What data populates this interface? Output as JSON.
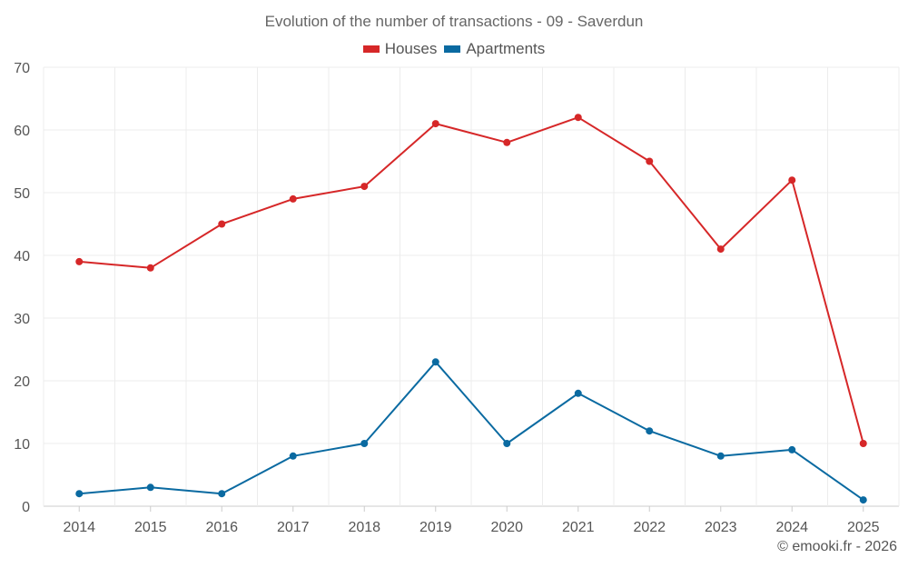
{
  "colors": {
    "houses": "#d62728",
    "apartments": "#0a6aa1",
    "grid": "#ececec"
  },
  "credit": "© emooki.fr - 2026",
  "chart_data": {
    "type": "line",
    "title": "Evolution of the number of transactions - 09 - Saverdun",
    "xlabel": "",
    "ylabel": "",
    "categories": [
      "2014",
      "2015",
      "2016",
      "2017",
      "2018",
      "2019",
      "2020",
      "2021",
      "2022",
      "2023",
      "2024",
      "2025"
    ],
    "ylim": [
      0,
      70
    ],
    "yticks": [
      0,
      10,
      20,
      30,
      40,
      50,
      60,
      70
    ],
    "grid": true,
    "legend_position": "top-center",
    "series": [
      {
        "name": "Houses",
        "color": "#d62728",
        "values": [
          39,
          38,
          45,
          49,
          51,
          61,
          58,
          62,
          55,
          41,
          52,
          10
        ]
      },
      {
        "name": "Apartments",
        "color": "#0a6aa1",
        "values": [
          2,
          3,
          2,
          8,
          10,
          23,
          10,
          18,
          12,
          8,
          9,
          1
        ]
      }
    ]
  }
}
